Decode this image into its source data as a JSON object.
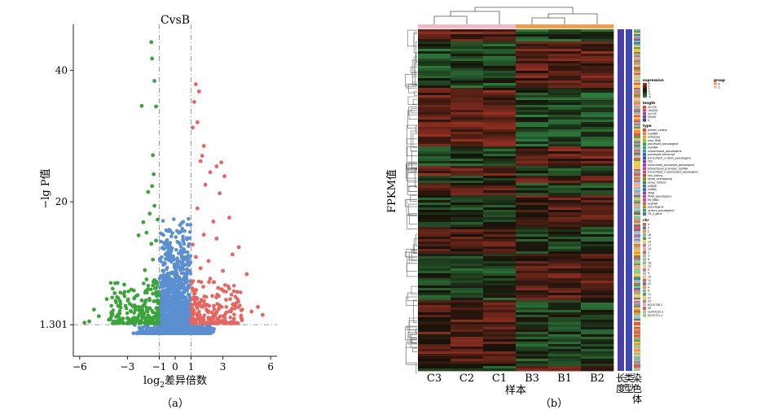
{
  "panel_a": {
    "caption": "（a）",
    "chart_data": {
      "type": "scatter",
      "title": "CvsB",
      "xlabel_prefix": "log",
      "xlabel_sub": "2",
      "xlabel_suffix": "差异倍数",
      "ylabel": "−lg P值",
      "xlim": [
        -6.4,
        6.4
      ],
      "ylim": [
        -3.5,
        47
      ],
      "x_ticks": [
        -6,
        -3,
        -1,
        0,
        1,
        3,
        6
      ],
      "y_ticks": [
        1.301,
        20,
        40
      ],
      "y_tick_labels": [
        "1.301",
        "20",
        "40"
      ],
      "threshold_lines": {
        "x": [
          -1,
          1
        ],
        "y": 1.301
      },
      "colors": {
        "down": "#3aa53a",
        "up": "#e8655f",
        "nonsig": "#5b8fd0",
        "threshold": "#9a9a9a"
      },
      "series": [
        {
          "group": "down",
          "color": "#3aa53a",
          "points": [
            [
              -1.5,
              44.3
            ],
            [
              -1.45,
              41.8
            ],
            [
              -1.3,
              38.4
            ],
            [
              -1.2,
              34.5
            ],
            [
              -2.1,
              34.6
            ],
            [
              -1.4,
              27.1
            ],
            [
              -1.35,
              24.2
            ],
            [
              -1.45,
              22.4
            ],
            [
              -1.7,
              21.5
            ],
            [
              -1.3,
              19.4
            ],
            [
              -1.6,
              18.2
            ],
            [
              -1.1,
              17.3
            ],
            [
              -2.0,
              16.9
            ],
            [
              -1.8,
              15.3
            ],
            [
              -2.3,
              14.9
            ],
            [
              -1.2,
              14.1
            ],
            [
              -1.5,
              13.6
            ],
            [
              -3.2,
              7.4
            ],
            [
              -3.8,
              6.1
            ],
            [
              -4.3,
              5.2
            ],
            [
              -5.1,
              3.6
            ],
            [
              -4.8,
              2.6
            ],
            [
              -3.0,
              2.3
            ],
            [
              -2.5,
              4.1
            ],
            [
              -2.1,
              5.0
            ],
            [
              -1.7,
              6.7
            ],
            [
              -1.3,
              8.1
            ],
            [
              -1.9,
              9.6
            ],
            [
              -1.4,
              11.2
            ],
            [
              -2.8,
              3.4
            ],
            [
              -3.5,
              3.0
            ],
            [
              -4.1,
              2.1
            ],
            [
              -5.4,
              1.8
            ],
            [
              -5.7,
              1.6
            ],
            [
              -2.2,
              2.9
            ],
            [
              -1.6,
              3.8
            ],
            [
              -1.2,
              4.9
            ],
            [
              -1.1,
              6.3
            ],
            [
              -2.6,
              6.5
            ],
            [
              -1.8,
              8.2
            ]
          ]
        },
        {
          "group": "up",
          "color": "#e8655f",
          "points": [
            [
              1.3,
              37.9
            ],
            [
              1.5,
              36.8
            ],
            [
              1.2,
              35.2
            ],
            [
              1.4,
              32.1
            ],
            [
              1.1,
              31.3
            ],
            [
              1.8,
              28.5
            ],
            [
              1.7,
              27.0
            ],
            [
              1.6,
              26.2
            ],
            [
              2.9,
              26.0
            ],
            [
              2.6,
              25.4
            ],
            [
              2.2,
              24.5
            ],
            [
              3.1,
              23.9
            ],
            [
              1.9,
              22.6
            ],
            [
              2.8,
              21.3
            ],
            [
              3.4,
              17.6
            ],
            [
              2.4,
              17.0
            ],
            [
              4.0,
              13.1
            ],
            [
              3.6,
              12.0
            ],
            [
              4.5,
              9.0
            ],
            [
              5.2,
              4.0
            ],
            [
              5.5,
              2.8
            ],
            [
              4.8,
              3.3
            ],
            [
              3.2,
              5.1
            ],
            [
              2.7,
              6.9
            ],
            [
              2.2,
              8.3
            ],
            [
              1.6,
              9.9
            ],
            [
              1.3,
              11.6
            ],
            [
              1.1,
              13.5
            ],
            [
              1.2,
              6.0
            ],
            [
              1.5,
              4.6
            ],
            [
              2.0,
              3.5
            ],
            [
              2.5,
              2.7
            ],
            [
              3.7,
              2.2
            ],
            [
              4.2,
              2.0
            ],
            [
              1.8,
              15.0
            ],
            [
              2.1,
              11.0
            ],
            [
              1.4,
              19.0
            ],
            [
              2.6,
              14.4
            ],
            [
              3.0,
              9.5
            ],
            [
              3.9,
              6.3
            ]
          ]
        }
      ]
    }
  },
  "panel_b": {
    "caption": "（b）",
    "chart_data": {
      "type": "heatmap",
      "ylabel": "FPKM值",
      "xlabel": "样本",
      "columns": [
        "C3",
        "C2",
        "C1",
        "B3",
        "B1",
        "B2"
      ],
      "column_groups": [
        "C",
        "C",
        "C",
        "B",
        "B",
        "B"
      ],
      "group_colors": {
        "C": "#f3b9c6",
        "B": "#f0a04b"
      },
      "colorscale": {
        "low": "#2f8a43",
        "mid": "#161209",
        "high": "#a83325"
      },
      "row_annotation_labels": [
        "长度",
        "类型",
        "染色体"
      ],
      "legend": {
        "expression_title": "expression",
        "expression_ticks": [
          "6",
          "4",
          "2",
          "0",
          "-2",
          "-4"
        ],
        "group_title": "group",
        "group_items": [
          "B",
          "C"
        ],
        "length_title": "length",
        "length_items": [
          "2e+05",
          "150000",
          "1e+05",
          "50000",
          "0"
        ],
        "type_title": "type",
        "type_items": [
          "protein_coding",
          "snoRNA",
          "antisense",
          "misc_RNA",
          "processed_pseudogene",
          "lincRNA",
          "unprocessed_pseudogene",
          "processed_transcript",
          "transcribed_u nitary_pseudogene",
          "TEC",
          "transcribed_processed_pseudogene",
          "bidirectional_promoter_lncRNA",
          "transcribed_u nprocessed_pseudogene",
          "non_coding",
          "sense_overlapping",
          "sense_intronic",
          "miRNA",
          "snRNA",
          "rRNA",
          "rRNA_pseudogene",
          "Mt_tRNA",
          "scaRNA",
          "pseudogene",
          "unitary_pseudogene",
          "TR_V_gene"
        ],
        "chr_title": "chr",
        "chr_items": [
          "X",
          "Y",
          "2",
          "18",
          "15",
          "19",
          "17",
          "14",
          "1",
          "3",
          "8",
          "16",
          "13",
          "5",
          "9",
          "10",
          "12",
          "22",
          "4",
          "6",
          "11",
          "21",
          "20",
          "KI270728.1",
          "MT",
          "GL000220.1",
          "KI270731.1"
        ]
      }
    }
  }
}
